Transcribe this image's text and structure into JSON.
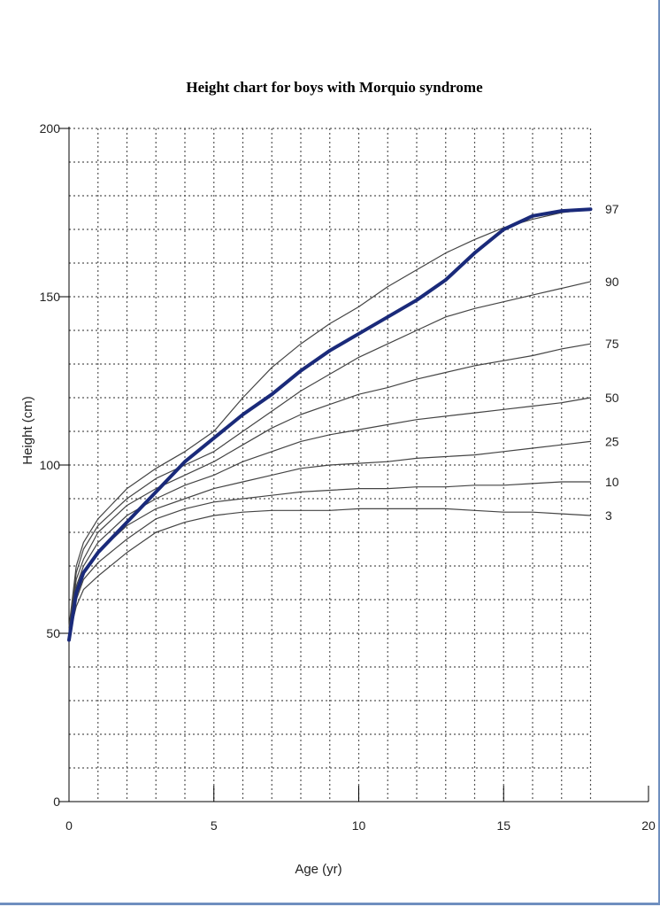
{
  "chart_data": {
    "type": "line",
    "title": "Height chart for boys with Morquio syndrome",
    "xlabel": "Age (yr)",
    "ylabel": "Height (cm)",
    "xlim": [
      0,
      20
    ],
    "ylim": [
      0,
      200
    ],
    "x_ticks": [
      0,
      5,
      10,
      15,
      20
    ],
    "y_ticks": [
      0,
      50,
      100,
      150,
      200
    ],
    "grid": true,
    "series": [
      {
        "name": "3",
        "x": [
          0,
          0.25,
          0.5,
          1,
          2,
          3,
          4,
          5,
          6,
          7,
          8,
          9,
          10,
          11,
          12,
          13,
          14,
          15,
          16,
          17,
          18
        ],
        "y": [
          49,
          58,
          63,
          67,
          74,
          80,
          83,
          85,
          86,
          86.5,
          86.5,
          86.5,
          87,
          87,
          87,
          87,
          86.5,
          86,
          86,
          85.5,
          85
        ]
      },
      {
        "name": "10",
        "x": [
          0,
          0.25,
          0.5,
          1,
          2,
          3,
          4,
          5,
          6,
          7,
          8,
          9,
          10,
          11,
          12,
          13,
          14,
          15,
          16,
          17,
          18
        ],
        "y": [
          49,
          60,
          66,
          71,
          78,
          84,
          87,
          89,
          90,
          91,
          92,
          92.5,
          93,
          93,
          93.5,
          93.5,
          94,
          94,
          94.5,
          95,
          95
        ]
      },
      {
        "name": "25",
        "x": [
          0,
          0.25,
          0.5,
          1,
          2,
          3,
          4,
          5,
          6,
          7,
          8,
          9,
          10,
          11,
          12,
          13,
          14,
          15,
          16,
          17,
          18
        ],
        "y": [
          50,
          62,
          68,
          74,
          82,
          87,
          90,
          93,
          95,
          97,
          99,
          100,
          100.5,
          101,
          102,
          102.5,
          103,
          104,
          105,
          106,
          107
        ]
      },
      {
        "name": "50",
        "x": [
          0,
          0.25,
          0.5,
          1,
          2,
          3,
          4,
          5,
          6,
          7,
          8,
          9,
          10,
          11,
          12,
          13,
          14,
          15,
          16,
          17,
          18
        ],
        "y": [
          50,
          64,
          70,
          77,
          85,
          90,
          94,
          97,
          101,
          104,
          107,
          109,
          110.5,
          112,
          113.5,
          114.5,
          115.5,
          116.5,
          117.5,
          118.5,
          120
        ]
      },
      {
        "name": "75",
        "x": [
          0,
          0.25,
          0.5,
          1,
          2,
          3,
          4,
          5,
          6,
          7,
          8,
          9,
          10,
          11,
          12,
          13,
          14,
          15,
          16,
          17,
          18
        ],
        "y": [
          50,
          66,
          72,
          80,
          88,
          93,
          97,
          101,
          106,
          111,
          115,
          118,
          121,
          123,
          125.5,
          127.5,
          129.5,
          131,
          132.5,
          134.5,
          136
        ]
      },
      {
        "name": "90",
        "x": [
          0,
          0.25,
          0.5,
          1,
          2,
          3,
          4,
          5,
          6,
          7,
          8,
          9,
          10,
          11,
          12,
          13,
          14,
          15,
          16,
          17,
          18
        ],
        "y": [
          51,
          68,
          75,
          82,
          90,
          96,
          100,
          104,
          110,
          116,
          122,
          127,
          132,
          136,
          140,
          144,
          146.5,
          148.5,
          150.5,
          152.5,
          154.5
        ]
      },
      {
        "name": "97",
        "x": [
          0,
          0.25,
          0.5,
          1,
          2,
          3,
          4,
          5,
          6,
          7,
          8,
          9,
          10,
          11,
          12,
          13,
          14,
          15,
          16,
          17,
          18
        ],
        "y": [
          52,
          70,
          77,
          84,
          93,
          99,
          104,
          110,
          120,
          129,
          136,
          142,
          147,
          153,
          158,
          163,
          167,
          170.5,
          173,
          175,
          176
        ]
      },
      {
        "name": "",
        "x": [
          0,
          0.25,
          0.5,
          1,
          2,
          3,
          4,
          5,
          6,
          7,
          8,
          9,
          10,
          11,
          12,
          13,
          14,
          15,
          16,
          17,
          18
        ],
        "y": [
          48,
          62,
          68,
          74,
          83,
          92,
          101,
          108,
          115,
          121,
          128,
          134,
          139,
          144,
          149,
          155,
          163,
          170,
          174,
          175.5,
          176
        ]
      }
    ]
  }
}
